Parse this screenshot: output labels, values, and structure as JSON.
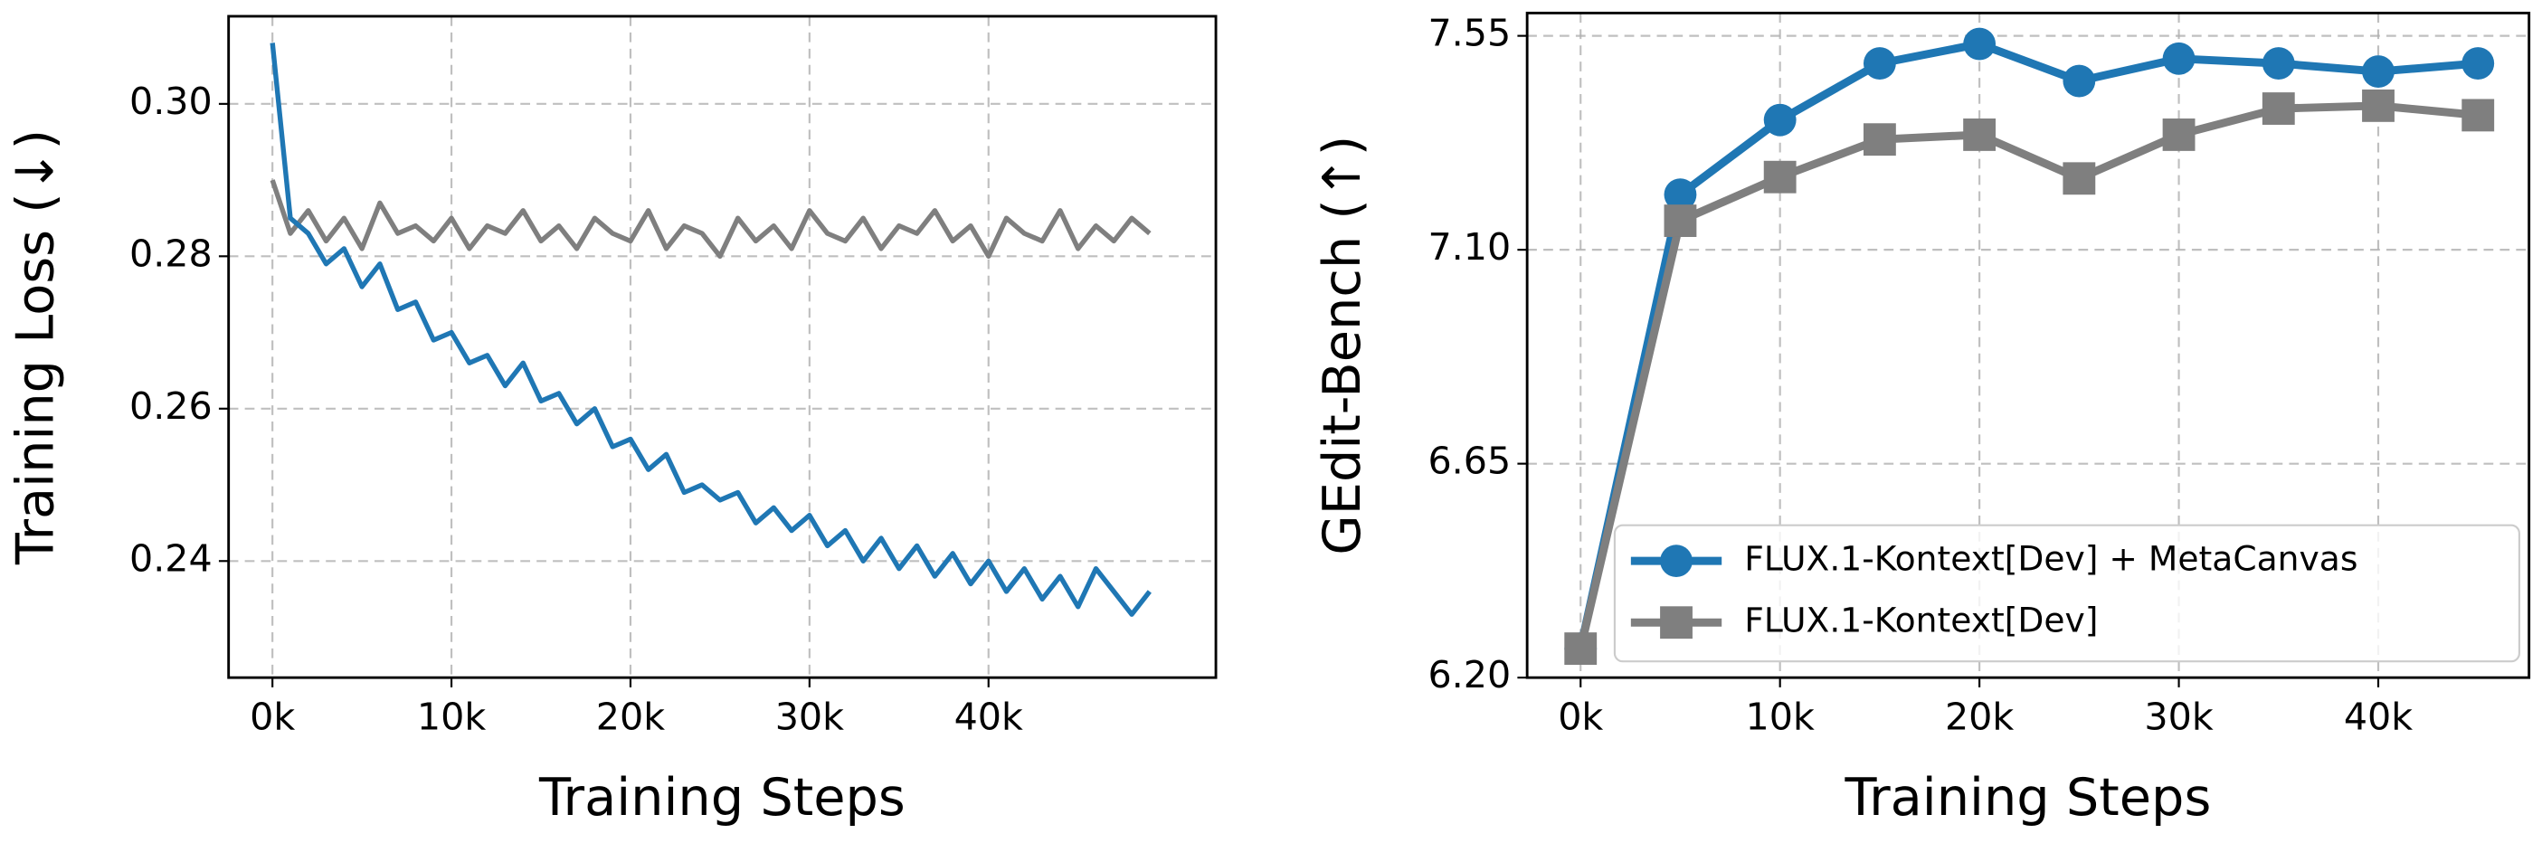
{
  "chart_data": [
    {
      "type": "line",
      "xlabel": "Training Steps",
      "ylabel": "Training Loss (↓)",
      "x": [
        0,
        1000,
        2000,
        3000,
        4000,
        5000,
        6000,
        7000,
        8000,
        9000,
        10000,
        11000,
        12000,
        13000,
        14000,
        15000,
        16000,
        17000,
        18000,
        19000,
        20000,
        21000,
        22000,
        23000,
        24000,
        25000,
        26000,
        27000,
        28000,
        29000,
        30000,
        31000,
        32000,
        33000,
        34000,
        35000,
        36000,
        37000,
        38000,
        39000,
        40000,
        41000,
        42000,
        43000,
        44000,
        45000,
        46000,
        47000,
        48000,
        49000
      ],
      "series": [
        {
          "color": "#7f7f7f",
          "values": [
            0.29,
            0.283,
            0.286,
            0.282,
            0.285,
            0.281,
            0.287,
            0.283,
            0.284,
            0.282,
            0.285,
            0.281,
            0.284,
            0.283,
            0.286,
            0.282,
            0.284,
            0.281,
            0.285,
            0.283,
            0.282,
            0.286,
            0.281,
            0.284,
            0.283,
            0.28,
            0.285,
            0.282,
            0.284,
            0.281,
            0.286,
            0.283,
            0.282,
            0.285,
            0.281,
            0.284,
            0.283,
            0.286,
            0.282,
            0.284,
            0.28,
            0.285,
            0.283,
            0.282,
            0.286,
            0.281,
            0.284,
            0.282,
            0.285,
            0.283
          ]
        },
        {
          "color": "#1f77b4",
          "values": [
            0.308,
            0.285,
            0.283,
            0.279,
            0.281,
            0.276,
            0.279,
            0.273,
            0.274,
            0.269,
            0.27,
            0.266,
            0.267,
            0.263,
            0.266,
            0.261,
            0.262,
            0.258,
            0.26,
            0.255,
            0.256,
            0.252,
            0.254,
            0.249,
            0.25,
            0.248,
            0.249,
            0.245,
            0.247,
            0.244,
            0.246,
            0.242,
            0.244,
            0.24,
            0.243,
            0.239,
            0.242,
            0.238,
            0.241,
            0.237,
            0.24,
            0.236,
            0.239,
            0.235,
            0.238,
            0.234,
            0.239,
            0.236,
            0.233,
            0.236
          ]
        }
      ],
      "xlim": [
        -2450,
        52700
      ],
      "ylim": [
        0.2247,
        0.3115
      ],
      "xticks": [
        {
          "value": 0,
          "label": "0k"
        },
        {
          "value": 10000,
          "label": "10k"
        },
        {
          "value": 20000,
          "label": "20k"
        },
        {
          "value": 30000,
          "label": "30k"
        },
        {
          "value": 40000,
          "label": "40k"
        }
      ],
      "yticks": [
        {
          "value": 0.24,
          "label": "0.24"
        },
        {
          "value": 0.26,
          "label": "0.26"
        },
        {
          "value": 0.28,
          "label": "0.28"
        },
        {
          "value": 0.3,
          "label": "0.30"
        }
      ],
      "grid": true
    },
    {
      "type": "line",
      "xlabel": "Training Steps",
      "ylabel": "GEdit-Bench (↑)",
      "x": [
        0,
        5000,
        10000,
        15000,
        20000,
        25000,
        30000,
        35000,
        40000,
        45000
      ],
      "series": [
        {
          "name": "FLUX.1-Kontext[Dev] + MetaCanvas",
          "color": "#1f77b4",
          "marker": "circle",
          "values": [
            6.261,
            7.216,
            7.373,
            7.492,
            7.533,
            7.455,
            7.502,
            7.492,
            7.475,
            7.492
          ]
        },
        {
          "name": "FLUX.1-Kontext[Dev]",
          "color": "#7f7f7f",
          "marker": "square",
          "values": [
            6.261,
            7.161,
            7.253,
            7.332,
            7.342,
            7.25,
            7.342,
            7.397,
            7.403,
            7.383
          ]
        }
      ],
      "xlim": [
        -2680,
        47560
      ],
      "ylim": [
        6.2,
        7.598
      ],
      "xticks": [
        {
          "value": 0,
          "label": "0k"
        },
        {
          "value": 10000,
          "label": "10k"
        },
        {
          "value": 20000,
          "label": "20k"
        },
        {
          "value": 30000,
          "label": "30k"
        },
        {
          "value": 40000,
          "label": "40k"
        }
      ],
      "yticks": [
        {
          "value": 6.2,
          "label": "6.20"
        },
        {
          "value": 6.65,
          "label": "6.65"
        },
        {
          "value": 7.1,
          "label": "7.10"
        },
        {
          "value": 7.55,
          "label": "7.55"
        }
      ],
      "grid": true,
      "legend": "lower right"
    }
  ]
}
